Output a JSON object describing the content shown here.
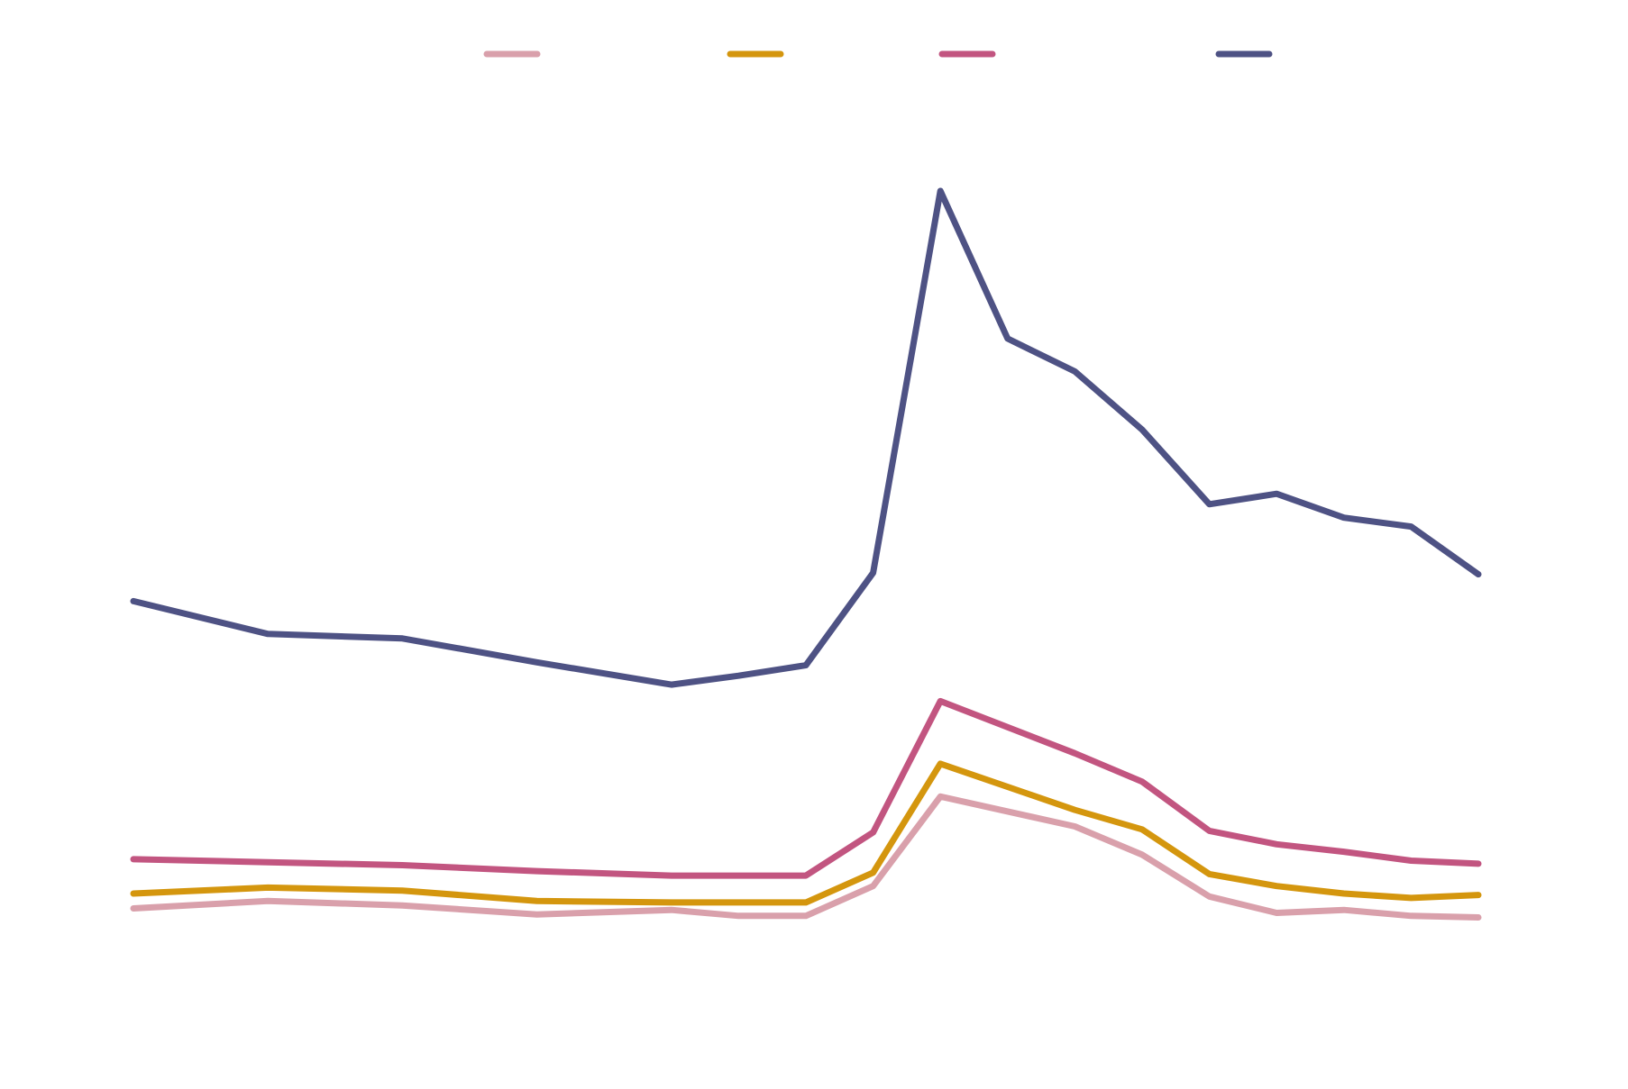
{
  "chart_data": {
    "type": "line",
    "grid": false,
    "legend": "top",
    "ylim": [
      0,
      100
    ],
    "series": [
      {
        "color": "#d9a0ab",
        "x": [
          0,
          10,
          20,
          30,
          40,
          45,
          50,
          55,
          60,
          70,
          75,
          80,
          85,
          90,
          95,
          100
        ],
        "values": [
          3.8,
          4.8,
          4.2,
          3.0,
          3.6,
          2.8,
          2.8,
          6.8,
          18.8,
          14.8,
          11.0,
          5.4,
          3.2,
          3.6,
          2.8,
          2.6
        ]
      },
      {
        "color": "#d4960e",
        "x": [
          0,
          10,
          20,
          30,
          40,
          45,
          50,
          55,
          60,
          70,
          75,
          80,
          85,
          90,
          95,
          100
        ],
        "values": [
          5.8,
          6.6,
          6.2,
          4.8,
          4.6,
          4.6,
          4.6,
          8.6,
          23.2,
          17.0,
          14.4,
          8.4,
          6.8,
          5.8,
          5.2,
          5.6
        ]
      },
      {
        "color": "#c25580",
        "x": [
          0,
          10,
          20,
          30,
          40,
          45,
          50,
          55,
          60,
          70,
          75,
          80,
          85,
          90,
          95,
          100
        ],
        "values": [
          10.4,
          10.0,
          9.6,
          8.8,
          8.2,
          8.2,
          8.2,
          14.0,
          31.6,
          24.6,
          20.8,
          14.2,
          12.4,
          11.4,
          10.2,
          9.8
        ]
      },
      {
        "color": "#4e5284",
        "x": [
          0,
          10,
          20,
          30,
          40,
          45,
          50,
          55,
          60,
          65,
          70,
          75,
          80,
          85,
          90,
          95,
          100
        ],
        "values": [
          45.0,
          40.6,
          40.0,
          36.8,
          33.8,
          35.0,
          36.4,
          48.8,
          100.0,
          80.2,
          75.8,
          68.0,
          58.0,
          59.4,
          56.2,
          55.0,
          48.6
        ]
      }
    ]
  }
}
